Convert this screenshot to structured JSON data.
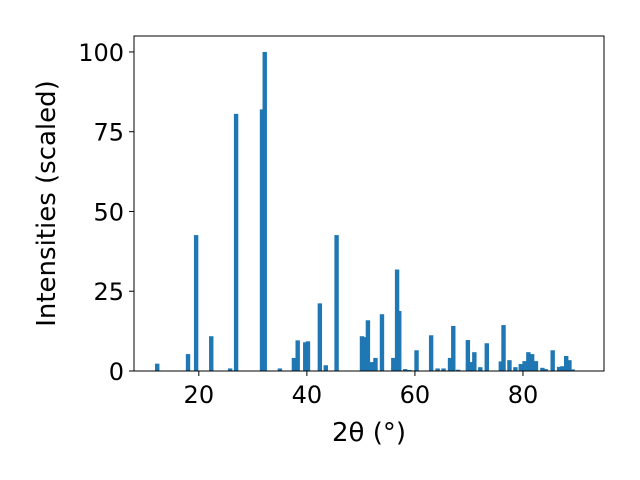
{
  "chart_data": {
    "type": "bar",
    "xlabel": "2θ (°)",
    "ylabel": "Intensities (scaled)",
    "xlim": [
      8,
      95
    ],
    "ylim": [
      0,
      105
    ],
    "xticks": [
      20,
      40,
      60,
      80
    ],
    "yticks": [
      0,
      25,
      50,
      75,
      100
    ],
    "grid": false,
    "bar_color": "#1f77b4",
    "x": [
      12.3,
      18.0,
      19.5,
      22.3,
      25.8,
      26.9,
      31.7,
      32.2,
      35.0,
      37.6,
      38.3,
      39.7,
      40.2,
      42.4,
      43.5,
      45.5,
      50.2,
      50.7,
      51.3,
      52.0,
      52.7,
      53.9,
      56.0,
      56.7,
      57.1,
      58.2,
      59.0,
      60.3,
      63.0,
      64.2,
      65.3,
      66.5,
      67.1,
      68.0,
      69.8,
      70.4,
      71.0,
      72.1,
      73.3,
      75.9,
      76.4,
      77.5,
      78.6,
      79.6,
      80.3,
      81.0,
      81.7,
      82.4,
      83.6,
      84.2,
      85.5,
      86.7,
      87.3,
      88.0,
      88.6,
      89.2
    ],
    "values": [
      2.3,
      5.3,
      42.6,
      10.9,
      0.8,
      80.6,
      82.0,
      100.0,
      0.8,
      4.1,
      9.6,
      9.0,
      9.3,
      21.2,
      1.8,
      42.6,
      10.9,
      10.6,
      15.9,
      2.8,
      4.1,
      17.8,
      4.1,
      31.8,
      18.8,
      0.6,
      0.3,
      6.5,
      11.2,
      0.8,
      0.8,
      4.1,
      14.1,
      0.4,
      9.7,
      2.8,
      5.9,
      1.2,
      8.7,
      3.0,
      14.4,
      3.4,
      1.2,
      2.2,
      3.1,
      5.9,
      5.3,
      3.1,
      1.0,
      0.6,
      6.5,
      1.3,
      1.5,
      4.7,
      3.4,
      0.5
    ]
  }
}
